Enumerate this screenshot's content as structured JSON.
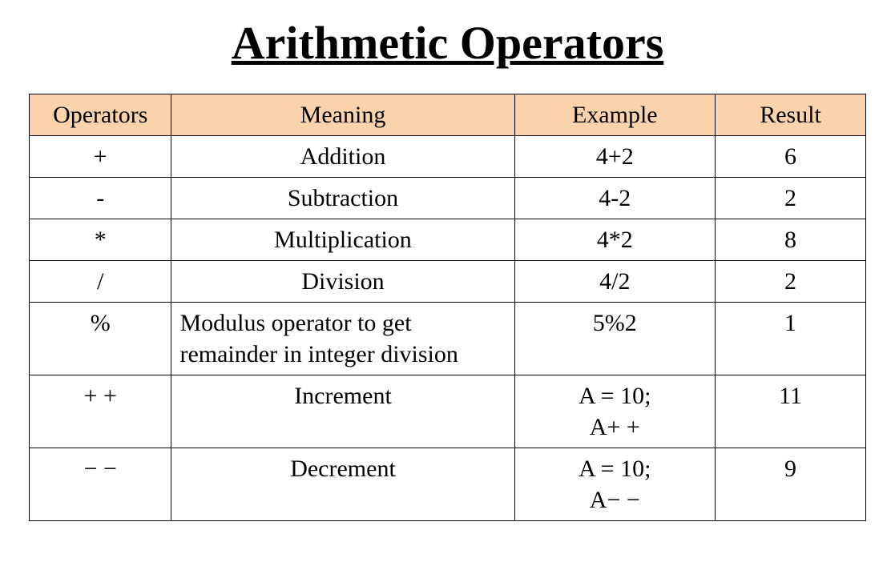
{
  "title": "Arithmetic Operators",
  "table": {
    "header_bg": "#fad2ac",
    "border_color": "#000000",
    "font_family": "Times New Roman",
    "title_fontsize": 58,
    "cell_fontsize": 30,
    "columns": [
      {
        "label": "Operators",
        "width_pct": 17,
        "align": "center"
      },
      {
        "label": "Meaning",
        "width_pct": 41,
        "align": "center"
      },
      {
        "label": "Example",
        "width_pct": 24,
        "align": "center"
      },
      {
        "label": "Result",
        "width_pct": 18,
        "align": "center"
      }
    ],
    "rows": [
      {
        "op": "+",
        "meaning": "Addition",
        "meaning_align": "center",
        "example": "4+2",
        "example_align": "center",
        "result": "6",
        "op_valign": "top",
        "res_valign": "top"
      },
      {
        "op": "-",
        "meaning": "Subtraction",
        "meaning_align": "center",
        "example": "4-2",
        "example_align": "center",
        "result": "2",
        "op_valign": "top",
        "res_valign": "top"
      },
      {
        "op": "*",
        "meaning": "Multiplication",
        "meaning_align": "center",
        "example": "4*2",
        "example_align": "center",
        "result": "8",
        "op_valign": "top",
        "res_valign": "top"
      },
      {
        "op": "/",
        "meaning": "Division",
        "meaning_align": "center",
        "example": "4/2",
        "example_align": "center",
        "result": "2",
        "op_valign": "top",
        "res_valign": "top"
      },
      {
        "op": "%",
        "meaning": "Modulus operator to get remainder in integer division",
        "meaning_align": "left",
        "example": "5%2",
        "example_align": "center",
        "result": "1",
        "op_valign": "middle",
        "res_valign": "middle"
      },
      {
        "op": "+ +",
        "meaning": "Increment",
        "meaning_align": "center",
        "example": "A = 10; A+ +",
        "example_align": "center",
        "result": "11",
        "op_valign": "top",
        "res_valign": "top"
      },
      {
        "op": "− −",
        "meaning": "Decrement",
        "meaning_align": "center",
        "example": "A = 10; A− −",
        "example_align": "center",
        "result": "9",
        "op_valign": "top",
        "res_valign": "top"
      }
    ]
  }
}
